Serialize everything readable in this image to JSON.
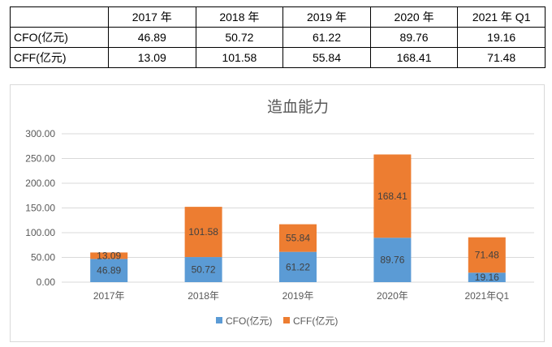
{
  "table": {
    "headers": [
      "",
      "2017 年",
      "2018 年",
      "2019 年",
      "2020 年",
      "2021 年 Q1"
    ],
    "rows": [
      {
        "label": "CFO(亿元)",
        "values": [
          "46.89",
          "50.72",
          "61.22",
          "89.76",
          "19.16"
        ]
      },
      {
        "label": "CFF(亿元)",
        "values": [
          "13.09",
          "101.58",
          "55.84",
          "168.41",
          "71.48"
        ]
      }
    ]
  },
  "colors": {
    "cfo": "#5b9bd5",
    "cff": "#ed7d31",
    "grid": "#d9d9d9",
    "text": "#595959"
  },
  "chart_data": {
    "type": "bar",
    "stacked": true,
    "title": "造血能力",
    "categories": [
      "2017年",
      "2018年",
      "2019年",
      "2020年",
      "2021年Q1"
    ],
    "series": [
      {
        "name": "CFO(亿元)",
        "values": [
          46.89,
          50.72,
          61.22,
          89.76,
          19.16
        ]
      },
      {
        "name": "CFF(亿元)",
        "values": [
          13.09,
          101.58,
          55.84,
          168.41,
          71.48
        ]
      }
    ],
    "ylim": [
      0,
      300
    ],
    "yticks": [
      "0.00",
      "50.00",
      "100.00",
      "150.00",
      "200.00",
      "250.00",
      "300.00"
    ],
    "grid": true,
    "legend_position": "bottom"
  }
}
